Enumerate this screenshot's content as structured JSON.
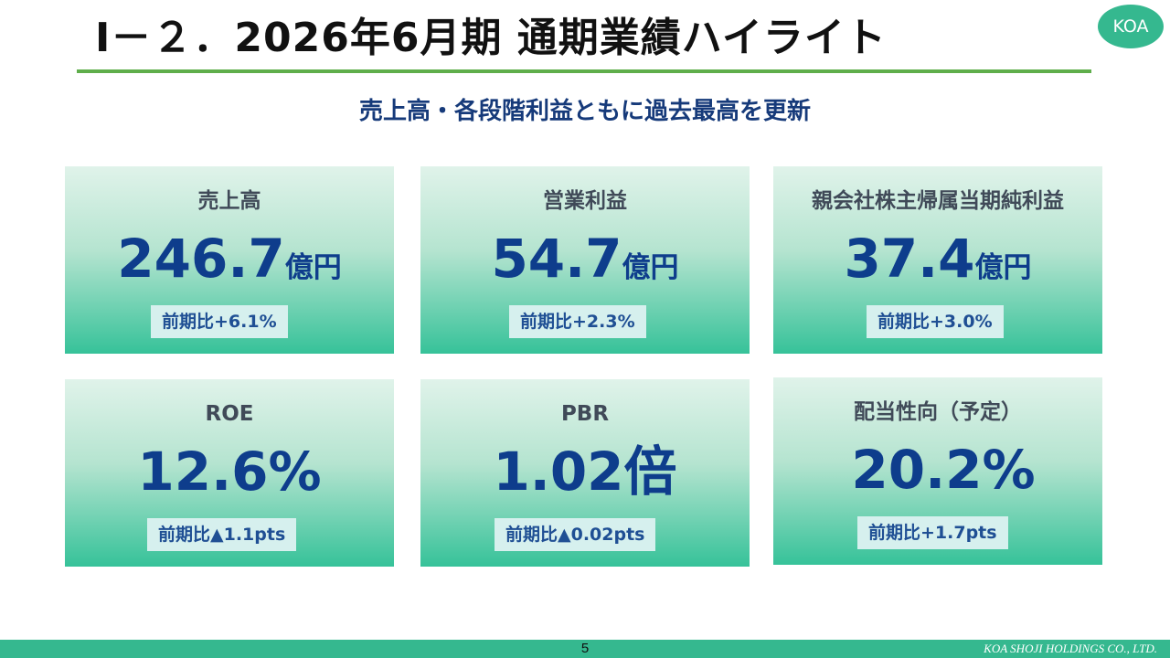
{
  "header": {
    "title": "Ⅰ－２．2026年6月期 通期業績ハイライト",
    "logo_text": "KOA"
  },
  "subtitle": "売上高・各段階利益ともに過去最高を更新",
  "cards": [
    {
      "label": "売上高",
      "value": "246.7",
      "unit": "億円",
      "change": "前期比+6.1%"
    },
    {
      "label": "営業利益",
      "value": "54.7",
      "unit": "億円",
      "change": "前期比+2.3%"
    },
    {
      "label": "親会社株主帰属当期純利益",
      "value": "37.4",
      "unit": "億円",
      "change": "前期比+3.0%"
    },
    {
      "label": "ROE",
      "value": "12.6%",
      "unit": "",
      "change": "前期比▲1.1pts"
    },
    {
      "label": "PBR",
      "value": "1.02",
      "unit": "倍",
      "change": "前期比▲0.02pts"
    },
    {
      "label": "配当性向（予定）",
      "value": "20.2%",
      "unit": "",
      "change": "前期比+1.7pts"
    }
  ],
  "footer": {
    "page_number": "5",
    "company": "KOA SHOJI HOLDINGS CO., LTD."
  },
  "colors": {
    "accent_green": "#35b88f",
    "value_blue": "#0e3d8c",
    "subtitle_navy": "#163a7a"
  }
}
